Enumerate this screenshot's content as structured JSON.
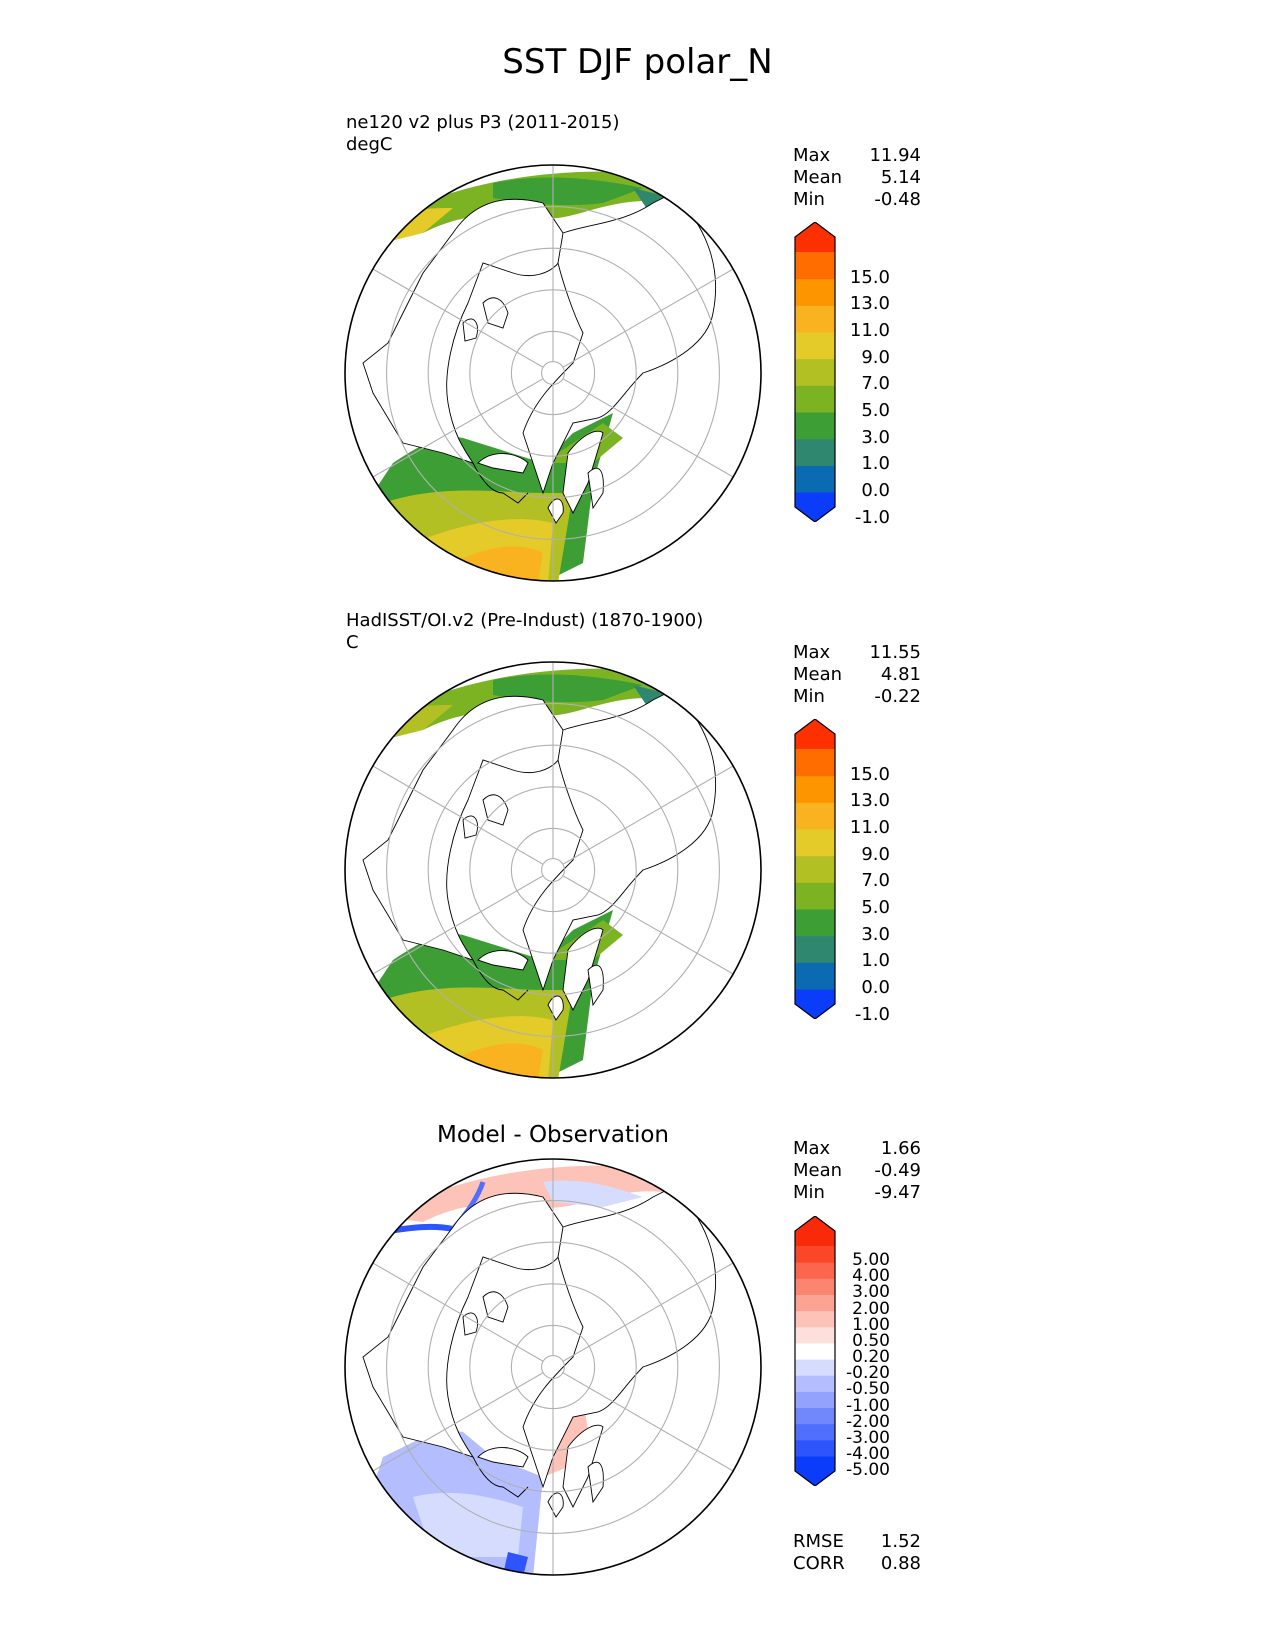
{
  "title": "SST DJF polar_N",
  "panels": [
    {
      "name": "test",
      "title_lines": [
        "ne120 v2 plus P3 (2011-2015)",
        "degC"
      ],
      "stats": [
        {
          "label": "Max",
          "value": "11.94"
        },
        {
          "label": "Mean",
          "value": "5.14"
        },
        {
          "label": "Min",
          "value": "-0.48"
        }
      ],
      "colorbar_labels": [
        "15.0",
        "13.0",
        "11.0",
        "9.0",
        "7.0",
        "5.0",
        "3.0",
        "1.0",
        "0.0",
        "-1.0"
      ],
      "colorbar_colors": [
        "#0a3cfa",
        "#0a6ab2",
        "#308770",
        "#3c9e34",
        "#7bb323",
        "#b3c024",
        "#e5cb2a",
        "#f9b321",
        "#fd9500",
        "#ff6d00",
        "#ff3000"
      ]
    },
    {
      "name": "reference",
      "title_lines": [
        "HadISST/OI.v2 (Pre-Indust) (1870-1900)",
        "C"
      ],
      "stats": [
        {
          "label": "Max",
          "value": "11.55"
        },
        {
          "label": "Mean",
          "value": "4.81"
        },
        {
          "label": "Min",
          "value": "-0.22"
        }
      ],
      "colorbar_labels": [
        "15.0",
        "13.0",
        "11.0",
        "9.0",
        "7.0",
        "5.0",
        "3.0",
        "1.0",
        "0.0",
        "-1.0"
      ],
      "colorbar_colors": [
        "#0a3cfa",
        "#0a6ab2",
        "#308770",
        "#3c9e34",
        "#7bb323",
        "#b3c024",
        "#e5cb2a",
        "#f9b321",
        "#fd9500",
        "#ff6d00",
        "#ff3000"
      ]
    },
    {
      "name": "difference",
      "center_title": "Model - Observation",
      "stats": [
        {
          "label": "Max",
          "value": "1.66"
        },
        {
          "label": "Mean",
          "value": "-0.49"
        },
        {
          "label": "Min",
          "value": "-9.47"
        }
      ],
      "colorbar_labels": [
        "5.00",
        "4.00",
        "3.00",
        "2.00",
        "1.00",
        "0.50",
        "0.20",
        "-0.20",
        "-0.50",
        "-1.00",
        "-2.00",
        "-3.00",
        "-4.00",
        "-5.00"
      ],
      "colorbar_colors": [
        "#0a3cfa",
        "#2d55fb",
        "#4f6ffc",
        "#7088fc",
        "#93a3fd",
        "#b4bdfe",
        "#d6dcfe",
        "#ffffff",
        "#fde0dc",
        "#fdc2b8",
        "#fca394",
        "#fb8571",
        "#fb664d",
        "#fa472a",
        "#f92a0a"
      ],
      "metrics": [
        {
          "label": "RMSE",
          "value": "1.52"
        },
        {
          "label": "CORR",
          "value": "0.88"
        }
      ]
    }
  ]
}
